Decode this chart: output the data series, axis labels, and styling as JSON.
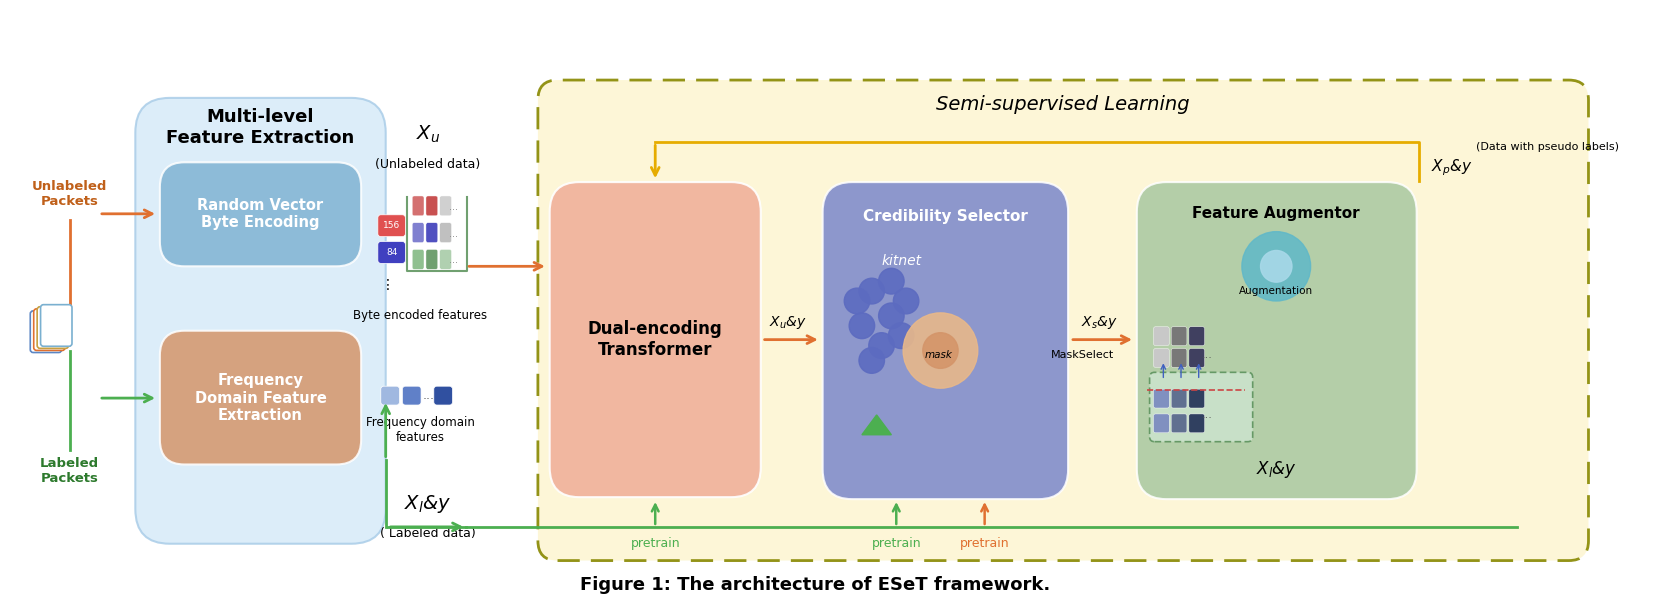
{
  "title": "Figure 1: The architecture of ESeT framework.",
  "fig_width": 16.53,
  "fig_height": 6.01,
  "background_color": "#ffffff",
  "colors": {
    "light_blue_bg": "#d6eaf8",
    "blue_box": "#7fb3d3",
    "orange_box": "#d4956a",
    "salmon_box": "#f0a890",
    "purple_box": "#7986cb",
    "green_box": "#8fbc8f",
    "yellow_bg": "#fdf6d3",
    "green_arrow": "#4caf50",
    "orange_arrow": "#e87722",
    "yellow_arrow": "#e6ac00",
    "light_purple": "#9fa8da",
    "dark_purple": "#5c6bc0",
    "teal_circle": "#5fb8c9"
  },
  "text": {
    "multilevel": "Multi-level\nFeature Extraction",
    "random_vector": "Random Vector\nByte Encoding",
    "frequency_domain": "Frequency\nDomain Feature\nExtraction",
    "unlabeled_packets": "Unlabeled\nPackets",
    "labeled_packets": "Labeled\nPackets",
    "xu": "Xₙ",
    "xu_unlabeled": "(Unlabeled data)",
    "xl_y": "Xₗ&y",
    "xl_labeled": "( Labeled data)",
    "byte_encoded": "Byte encoded features",
    "freq_domain": "Frequency domain\nfeatures",
    "dual_encoding": "Dual-encoding\nTransformer",
    "xu_y_out": "Xₙ&y",
    "semi_supervised": "Semi-supervised Learning",
    "credibility_selector": "Credibility Selector",
    "kitnet": "kitnet",
    "mask": "mask",
    "mask_select": "MaskSelect",
    "xs_y": "Xₛ&y",
    "feature_augmentor": "Feature Augmentor",
    "augmentation": "Augmentation",
    "xp_y": "Xₚ&y",
    "data_pseudo": "(Data with pseudo labels)",
    "xl_y_bottom": "Xₗ&y",
    "pretrain1": "pretrain",
    "pretrain2": "pretrain",
    "pretrain3": "pretrain"
  }
}
